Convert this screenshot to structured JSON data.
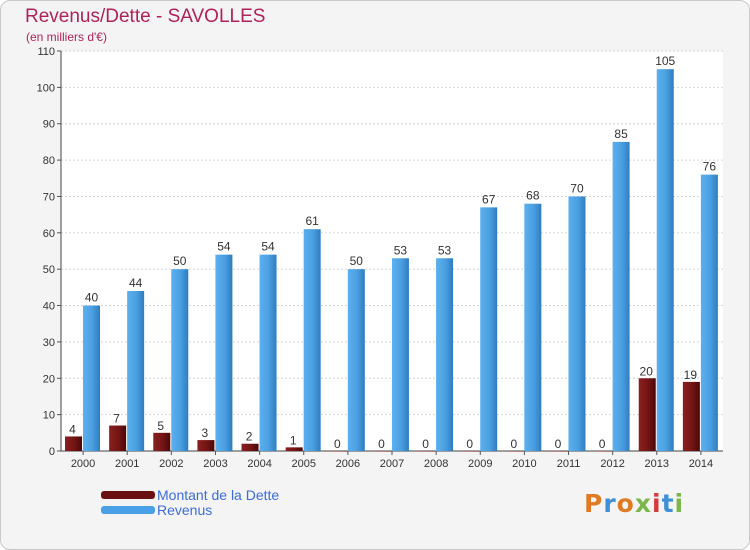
{
  "header": {
    "title": "Revenus/Dette - SAVOLLES",
    "subtitle": "(en milliers d'€)"
  },
  "chart_data": {
    "type": "bar",
    "categories": [
      "2000",
      "2001",
      "2002",
      "2003",
      "2004",
      "2005",
      "2006",
      "2007",
      "2008",
      "2009",
      "2010",
      "2011",
      "2012",
      "2013",
      "2014"
    ],
    "series": [
      {
        "name": "Montant de la Dette",
        "values": [
          4,
          7,
          5,
          3,
          2,
          1,
          0,
          0,
          0,
          0,
          0,
          0,
          0,
          20,
          19
        ],
        "color": "#7a1616"
      },
      {
        "name": "Revenus",
        "values": [
          40,
          44,
          50,
          54,
          54,
          61,
          50,
          53,
          53,
          67,
          68,
          70,
          85,
          105,
          76
        ],
        "color": "#4a9fe0"
      }
    ],
    "ylim": [
      0,
      110
    ],
    "yticks": [
      0,
      10,
      20,
      30,
      40,
      50,
      60,
      70,
      80,
      90,
      100,
      110
    ],
    "grid": true,
    "legend": "bottom-left"
  },
  "legend": {
    "items": [
      {
        "label": "Montant de la Dette",
        "color": "#6b1010"
      },
      {
        "label": "Revenus",
        "color": "#4aa0e6"
      }
    ]
  },
  "logo": {
    "text": "Proxiti",
    "colors": [
      "#e07a22",
      "#3f8fd8",
      "#e07a22",
      "#7ab648",
      "#d63a3a",
      "#3f8fd8",
      "#7ab648"
    ]
  }
}
